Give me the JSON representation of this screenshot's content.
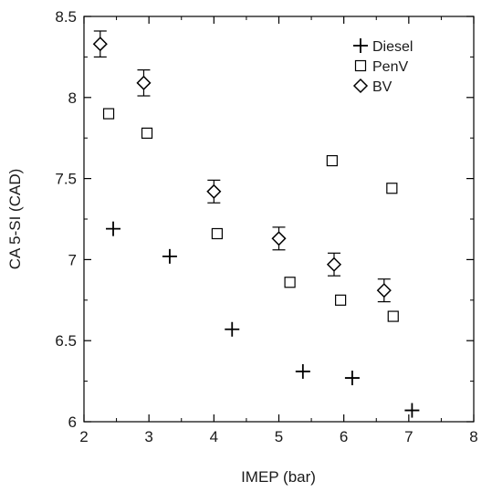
{
  "chart_data": {
    "type": "scatter",
    "title": "",
    "xlabel": "IMEP (bar)",
    "ylabel": "CA 5-SI (CAD)",
    "xlim": [
      2,
      8
    ],
    "ylim": [
      6,
      8.5
    ],
    "xticks": [
      2,
      3,
      4,
      5,
      6,
      7,
      8
    ],
    "xtick_labels": [
      "2",
      "3",
      "4",
      "5",
      "6",
      "7",
      "8"
    ],
    "yticks": [
      6,
      6.5,
      7,
      7.5,
      8,
      8.5
    ],
    "ytick_labels": [
      "6",
      "6.5",
      "7",
      "7.5",
      "8",
      "8.5"
    ],
    "grid": false,
    "legend_position": "top-right",
    "series": [
      {
        "name": "Diesel",
        "marker": "plus",
        "color": "#000000",
        "points": [
          {
            "x": 2.45,
            "y": 7.19
          },
          {
            "x": 3.32,
            "y": 7.02
          },
          {
            "x": 4.28,
            "y": 6.57
          },
          {
            "x": 5.37,
            "y": 6.31
          },
          {
            "x": 6.13,
            "y": 6.27
          },
          {
            "x": 7.05,
            "y": 6.07
          }
        ]
      },
      {
        "name": "PenV",
        "marker": "square",
        "color": "#000000",
        "points": [
          {
            "x": 2.38,
            "y": 7.9
          },
          {
            "x": 2.97,
            "y": 7.78
          },
          {
            "x": 4.05,
            "y": 7.16
          },
          {
            "x": 5.17,
            "y": 6.86
          },
          {
            "x": 5.82,
            "y": 7.61
          },
          {
            "x": 5.95,
            "y": 6.75
          },
          {
            "x": 6.74,
            "y": 7.44
          },
          {
            "x": 6.76,
            "y": 6.65
          }
        ]
      },
      {
        "name": "BV",
        "marker": "diamond",
        "color": "#000000",
        "error_bars": true,
        "points": [
          {
            "x": 2.25,
            "y": 8.33,
            "yerr": 0.08
          },
          {
            "x": 2.92,
            "y": 8.09,
            "yerr": 0.08
          },
          {
            "x": 4.0,
            "y": 7.42,
            "yerr": 0.07
          },
          {
            "x": 5.0,
            "y": 7.13,
            "yerr": 0.07
          },
          {
            "x": 5.85,
            "y": 6.97,
            "yerr": 0.07
          },
          {
            "x": 6.62,
            "y": 6.81,
            "yerr": 0.07
          }
        ]
      }
    ]
  }
}
